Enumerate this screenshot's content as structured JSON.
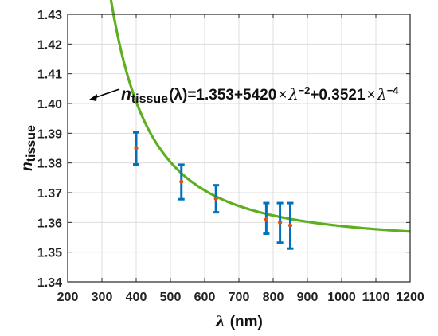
{
  "chart_data": {
    "type": "scatter",
    "xlabel": {
      "symbol": "λ",
      "unit": " (nm)"
    },
    "ylabel": {
      "base": "n",
      "sub": "tissue"
    },
    "xlim": [
      200,
      1200
    ],
    "ylim": [
      1.34,
      1.43
    ],
    "xticks": [
      "200",
      "300",
      "400",
      "500",
      "600",
      "700",
      "800",
      "900",
      "1000",
      "1100",
      "1200"
    ],
    "yticks": [
      "1.34",
      "1.35",
      "1.36",
      "1.37",
      "1.38",
      "1.39",
      "1.40",
      "1.41",
      "1.42",
      "1.43"
    ],
    "grid": true,
    "fit": {
      "name_base": "n",
      "name_sub": "tissue",
      "arg": "(λ)",
      "eq_start": "=1.353+5420",
      "times1": "×",
      "lam1": "λ",
      "exp1": "−2",
      "eq_mid": "+0.3521",
      "times2": "×",
      "lam2": "λ",
      "exp2": "−4",
      "a": 1.353,
      "b": 5420,
      "c": 0.3521,
      "color": "#5eaf1e"
    },
    "points": [
      {
        "x": 400,
        "y": 1.385,
        "err_low": 1.3795,
        "err_high": 1.3903
      },
      {
        "x": 532,
        "y": 1.3737,
        "err_low": 1.3678,
        "err_high": 1.3794
      },
      {
        "x": 633,
        "y": 1.368,
        "err_low": 1.3634,
        "err_high": 1.3725
      },
      {
        "x": 780,
        "y": 1.361,
        "err_low": 1.3562,
        "err_high": 1.3665
      },
      {
        "x": 820,
        "y": 1.36,
        "err_low": 1.3532,
        "err_high": 1.3665
      },
      {
        "x": 850,
        "y": 1.359,
        "err_low": 1.3512,
        "err_high": 1.3665
      }
    ],
    "errorbar_color": "#0072bd",
    "marker_color": "#d95319"
  }
}
